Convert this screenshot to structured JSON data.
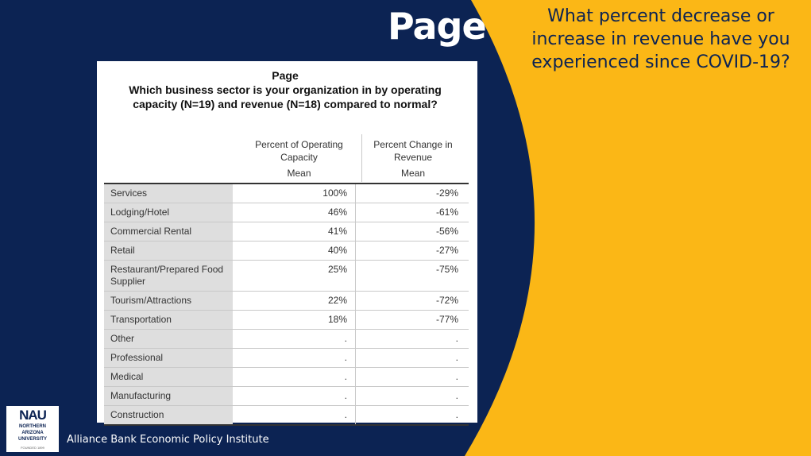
{
  "slide": {
    "title": "Page",
    "question": "What percent decrease or increase in revenue have you experienced since COVID-19?",
    "background_color": "#0c2353",
    "accent_color": "#fbb716"
  },
  "table": {
    "label": "Page",
    "title": "Which business sector is your organization in by operating capacity (N=19) and revenue (N=18) compared to normal?",
    "columns": [
      {
        "header": "Percent of Operating Capacity",
        "stat": "Mean"
      },
      {
        "header": "Percent Change in Revenue",
        "stat": "Mean"
      }
    ],
    "rows": [
      {
        "category": "Services",
        "capacity": "100%",
        "revenue": "-29%"
      },
      {
        "category": "Lodging/Hotel",
        "capacity": "46%",
        "revenue": "-61%"
      },
      {
        "category": "Commercial Rental",
        "capacity": "41%",
        "revenue": "-56%"
      },
      {
        "category": "Retail",
        "capacity": "40%",
        "revenue": "-27%"
      },
      {
        "category": "Restaurant/Prepared Food Supplier",
        "capacity": "25%",
        "revenue": "-75%"
      },
      {
        "category": "Tourism/Attractions",
        "capacity": "22%",
        "revenue": "-72%"
      },
      {
        "category": "Transportation",
        "capacity": "18%",
        "revenue": "-77%"
      },
      {
        "category": "Other",
        "capacity": ".",
        "revenue": "."
      },
      {
        "category": "Professional",
        "capacity": ".",
        "revenue": "."
      },
      {
        "category": "Medical",
        "capacity": ".",
        "revenue": "."
      },
      {
        "category": "Manufacturing",
        "capacity": ".",
        "revenue": "."
      },
      {
        "category": "Construction",
        "capacity": ".",
        "revenue": "."
      }
    ]
  },
  "logo": {
    "mark": "NAU",
    "line1": "NORTHERN",
    "line2": "ARIZONA",
    "line3": "UNIVERSITY",
    "founded": "FOUNDED 1899"
  },
  "footer": {
    "organization": "Alliance Bank Economic Policy Institute"
  }
}
